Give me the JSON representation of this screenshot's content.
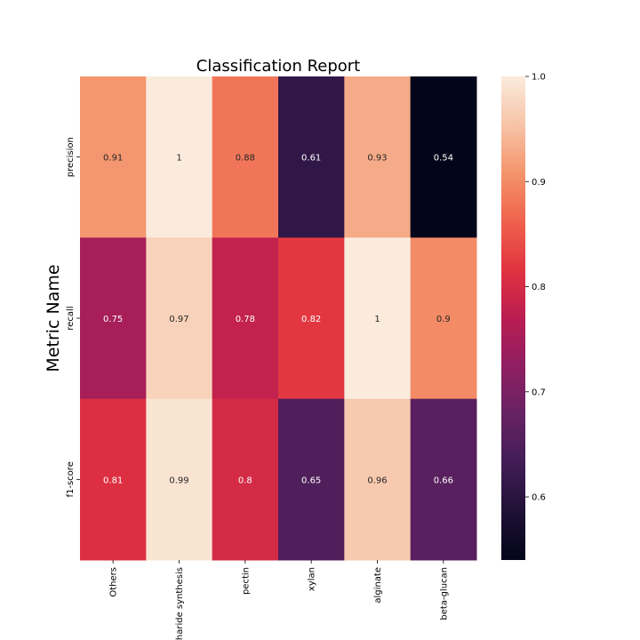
{
  "chart_data": {
    "type": "heatmap",
    "title": "Classification Report",
    "xlabel": "",
    "ylabel": "Metric Name",
    "columns": [
      "Others",
      "charide synthesis",
      "pectin",
      "xylan",
      "alginate",
      "beta-glucan"
    ],
    "rows": [
      "precision",
      "recall",
      "f1-score"
    ],
    "values": [
      [
        0.91,
        1,
        0.88,
        0.61,
        0.93,
        0.54
      ],
      [
        0.75,
        0.97,
        0.78,
        0.82,
        1,
        0.9
      ],
      [
        0.81,
        0.99,
        0.8,
        0.65,
        0.96,
        0.66
      ]
    ],
    "colorbar": {
      "min": 0.54,
      "max": 1.0,
      "ticks": [
        0.6,
        0.7,
        0.8,
        0.9,
        1.0
      ],
      "tick_labels": [
        "0.6",
        "0.7",
        "0.8",
        "0.9",
        "1.0"
      ],
      "colormap": "rocket"
    },
    "grid": false,
    "annotations": true
  }
}
